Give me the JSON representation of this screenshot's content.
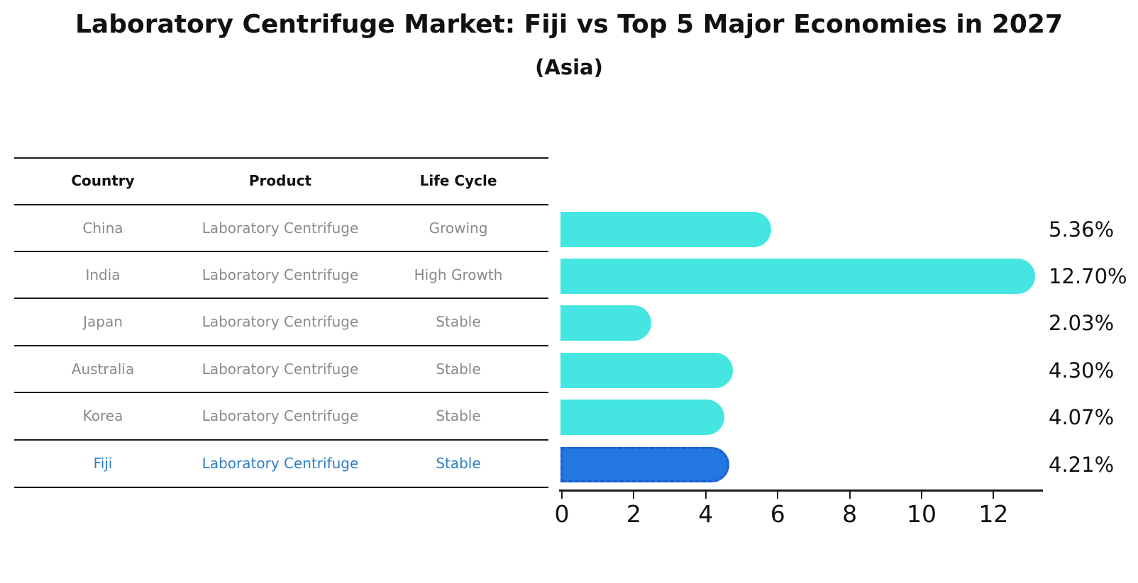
{
  "header": {
    "title": "Laboratory Centrifuge Market: Fiji vs Top 5 Major Economies in 2027",
    "subtitle": "(Asia)"
  },
  "table": {
    "headers": [
      "Country",
      "Product",
      "Life Cycle"
    ],
    "rows": [
      {
        "country": "China",
        "product": "Laboratory Centrifuge",
        "life_cycle": "Growing",
        "highlighted": false
      },
      {
        "country": "India",
        "product": "Laboratory Centrifuge",
        "life_cycle": "High Growth",
        "highlighted": false
      },
      {
        "country": "Japan",
        "product": "Laboratory Centrifuge",
        "life_cycle": "Stable",
        "highlighted": false
      },
      {
        "country": "Australia",
        "product": "Laboratory Centrifuge",
        "life_cycle": "Stable",
        "highlighted": false
      },
      {
        "country": "Korea",
        "product": "Laboratory Centrifuge",
        "life_cycle": "Stable",
        "highlighted": false
      },
      {
        "country": "Fiji",
        "product": "Laboratory Centrifuge",
        "life_cycle": "Stable",
        "highlighted": true
      }
    ]
  },
  "chart_data": {
    "type": "bar",
    "orientation": "horizontal",
    "title": "Laboratory Centrifuge Market: Fiji vs Top 5 Major Economies in 2027",
    "subtitle": "(Asia)",
    "categories": [
      "China",
      "India",
      "Japan",
      "Australia",
      "Korea",
      "Fiji"
    ],
    "values": [
      5.36,
      12.7,
      2.03,
      4.3,
      4.07,
      4.21
    ],
    "value_labels": [
      "5.36%",
      "12.70%",
      "2.03%",
      "4.30%",
      "4.07%",
      "4.21%"
    ],
    "x_ticks": [
      0,
      2,
      4,
      6,
      8,
      10,
      12
    ],
    "xlim": [
      0,
      13.3
    ],
    "grid": false,
    "legend": false,
    "highlight_category": "Fiji",
    "colors": {
      "bar": "#45e6e2",
      "highlight_bar": "#2277e0",
      "highlight_border": "#1a5ecc",
      "value_label": "#111111"
    }
  }
}
